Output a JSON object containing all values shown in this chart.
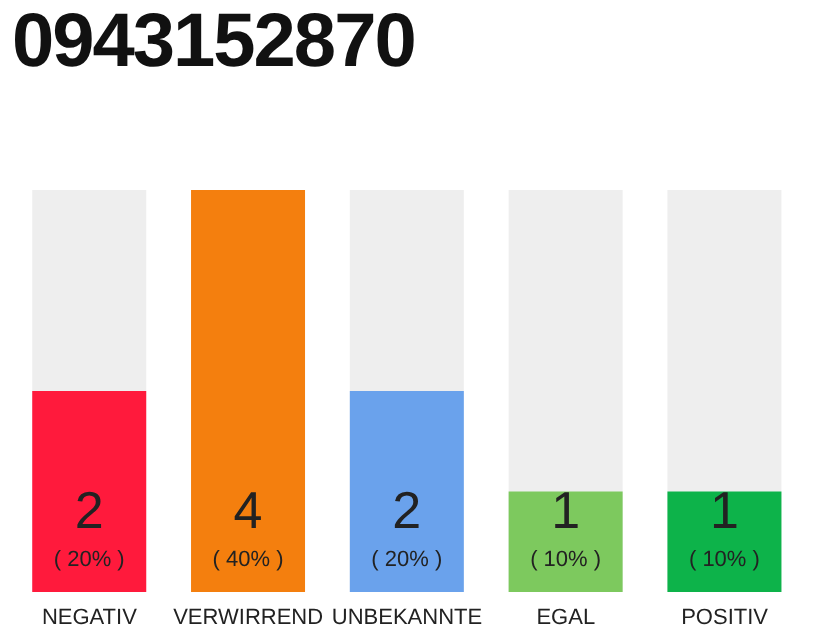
{
  "chart_data": {
    "type": "bar",
    "title": "0943152870",
    "categories": [
      "NEGATIV",
      "VERWIRREND",
      "UNBEKANNTE",
      "EGAL",
      "POSITIV"
    ],
    "values": [
      2,
      4,
      2,
      1,
      1
    ],
    "colors": [
      "#ff1a3c",
      "#f47f0e",
      "#6aa2ec",
      "#7dc95e",
      "#0db34a"
    ],
    "value_labels": [
      "2\n( 20% )",
      "4\n( 40% )",
      "2\n( 20% )",
      "1\n( 10% )",
      "1\n( 10% )"
    ],
    "grid": false,
    "legend": false
  }
}
